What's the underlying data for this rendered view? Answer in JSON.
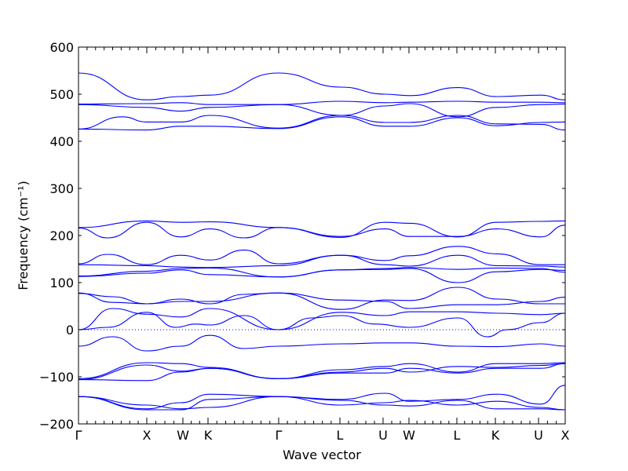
{
  "chart_data": {
    "type": "line",
    "xlabel": "Wave vector",
    "ylabel": "Frequency (cm⁻¹)",
    "ylim": [
      -200,
      600
    ],
    "yticks": [
      -200,
      -100,
      0,
      100,
      200,
      300,
      400,
      500,
      600
    ],
    "grid": false,
    "line_color": "#0000ff",
    "zero_line_color": "#0000ff",
    "xlim": [
      0,
      1
    ],
    "high_symmetry_points": [
      {
        "label": "Γ",
        "x": 0.0
      },
      {
        "label": "X",
        "x": 0.1403
      },
      {
        "label": "W",
        "x": 0.2145
      },
      {
        "label": "K",
        "x": 0.2661
      },
      {
        "label": "Γ",
        "x": 0.4113
      },
      {
        "label": "L",
        "x": 0.5371
      },
      {
        "label": "U",
        "x": 0.6258
      },
      {
        "label": "W",
        "x": 0.679
      },
      {
        "label": "L",
        "x": 0.7774
      },
      {
        "label": "K",
        "x": 0.8565
      },
      {
        "label": "U",
        "x": 0.9452
      },
      {
        "label": "X",
        "x": 1.0
      }
    ],
    "series": [
      {
        "x": [
          0,
          0.14,
          0.21,
          0.27,
          0.41,
          0.54,
          0.63,
          0.68,
          0.78,
          0.86,
          0.95,
          1
        ],
        "y": [
          545,
          488,
          495,
          498,
          545,
          515,
          500,
          497,
          514,
          495,
          498,
          488
        ]
      },
      {
        "x": [
          0,
          0.14,
          0.21,
          0.27,
          0.41,
          0.54,
          0.63,
          0.68,
          0.78,
          0.86,
          0.95,
          1
        ],
        "y": [
          479,
          480,
          482,
          478,
          478,
          485,
          482,
          483,
          485,
          483,
          483,
          482
        ]
      },
      {
        "x": [
          0,
          0.14,
          0.21,
          0.27,
          0.41,
          0.54,
          0.63,
          0.68,
          0.78,
          0.86,
          0.95,
          1
        ],
        "y": [
          478,
          472,
          464,
          472,
          478,
          455,
          475,
          480,
          452,
          472,
          478,
          479
        ]
      },
      {
        "x": [
          0,
          0.09,
          0.14,
          0.21,
          0.27,
          0.41,
          0.54,
          0.63,
          0.68,
          0.78,
          0.86,
          0.95,
          1
        ],
        "y": [
          426,
          452,
          441,
          441,
          455,
          428,
          455,
          440,
          440,
          455,
          437,
          436,
          424
        ]
      },
      {
        "x": [
          0,
          0.14,
          0.21,
          0.27,
          0.41,
          0.54,
          0.63,
          0.68,
          0.78,
          0.86,
          0.95,
          1
        ],
        "y": [
          426,
          424,
          432,
          432,
          427,
          452,
          432,
          432,
          450,
          433,
          440,
          441
        ]
      },
      {
        "x": [
          0,
          0.14,
          0.21,
          0.27,
          0.41,
          0.54,
          0.63,
          0.68,
          0.78,
          0.86,
          0.95,
          1
        ],
        "y": [
          217,
          231,
          228,
          229,
          217,
          196,
          228,
          226,
          197,
          228,
          230,
          231
        ]
      },
      {
        "x": [
          0,
          0.06,
          0.14,
          0.21,
          0.27,
          0.34,
          0.41,
          0.54,
          0.63,
          0.68,
          0.78,
          0.86,
          0.95,
          1
        ],
        "y": [
          216,
          195,
          228,
          197,
          214,
          195,
          217,
          198,
          214,
          198,
          198,
          214,
          197,
          222
        ]
      },
      {
        "x": [
          0,
          0.06,
          0.14,
          0.21,
          0.27,
          0.34,
          0.41,
          0.54,
          0.63,
          0.68,
          0.78,
          0.86,
          0.95,
          1
        ],
        "y": [
          140,
          160,
          138,
          158,
          148,
          169,
          140,
          158,
          147,
          157,
          177,
          161,
          138,
          138
        ]
      },
      {
        "x": [
          0,
          0.14,
          0.21,
          0.27,
          0.41,
          0.54,
          0.63,
          0.68,
          0.78,
          0.86,
          0.95,
          1
        ],
        "y": [
          138,
          136,
          133,
          132,
          136,
          158,
          138,
          135,
          158,
          136,
          135,
          133
        ]
      },
      {
        "x": [
          0,
          0.14,
          0.21,
          0.27,
          0.41,
          0.54,
          0.63,
          0.68,
          0.78,
          0.86,
          0.95,
          1
        ],
        "y": [
          114,
          124,
          130,
          131,
          112,
          127,
          130,
          132,
          128,
          131,
          130,
          122
        ]
      },
      {
        "x": [
          0,
          0.14,
          0.21,
          0.27,
          0.41,
          0.54,
          0.63,
          0.68,
          0.78,
          0.86,
          0.95,
          1
        ],
        "y": [
          113,
          120,
          127,
          117,
          112,
          127,
          128,
          130,
          100,
          123,
          128,
          126
        ]
      },
      {
        "x": [
          0,
          0.07,
          0.14,
          0.21,
          0.27,
          0.34,
          0.41,
          0.54,
          0.63,
          0.68,
          0.78,
          0.86,
          0.95,
          1
        ],
        "y": [
          78,
          58,
          55,
          65,
          55,
          75,
          78,
          43,
          63,
          62,
          90,
          65,
          55,
          55
        ]
      },
      {
        "x": [
          0,
          0.07,
          0.14,
          0.21,
          0.27,
          0.41,
          0.54,
          0.63,
          0.68,
          0.78,
          0.86,
          0.95,
          1
        ],
        "y": [
          77,
          70,
          55,
          60,
          60,
          78,
          63,
          60,
          45,
          53,
          53,
          60,
          69
        ]
      },
      {
        "x": [
          0,
          0.07,
          0.14,
          0.21,
          0.27,
          0.41,
          0.54,
          0.63,
          0.68,
          0.78,
          0.86,
          0.95,
          1
        ],
        "y": [
          0,
          45,
          33,
          27,
          45,
          0,
          37,
          30,
          38,
          38,
          35,
          32,
          35
        ]
      },
      {
        "x": [
          0,
          0.06,
          0.14,
          0.2,
          0.24,
          0.27,
          0.34,
          0.41,
          0.48,
          0.54,
          0.61,
          0.68,
          0.78,
          0.84,
          0.88,
          0.95,
          1
        ],
        "y": [
          0,
          5,
          37,
          5,
          12,
          10,
          30,
          0,
          25,
          30,
          12,
          5,
          25,
          -15,
          0,
          15,
          35
        ]
      },
      {
        "x": [
          0,
          0.07,
          0.14,
          0.21,
          0.27,
          0.34,
          0.41,
          0.54,
          0.63,
          0.68,
          0.78,
          0.86,
          0.95,
          1
        ],
        "y": [
          -35,
          -15,
          -45,
          -35,
          -12,
          -40,
          -35,
          -30,
          -28,
          -28,
          -35,
          -36,
          -30,
          -35
        ]
      },
      {
        "x": [
          0,
          0.14,
          0.21,
          0.27,
          0.41,
          0.54,
          0.63,
          0.68,
          0.78,
          0.86,
          0.95,
          1
        ],
        "y": [
          -104,
          -70,
          -72,
          -80,
          -104,
          -85,
          -78,
          -72,
          -90,
          -72,
          -72,
          -70
        ]
      },
      {
        "x": [
          0,
          0.14,
          0.21,
          0.27,
          0.41,
          0.54,
          0.63,
          0.68,
          0.78,
          0.86,
          0.95,
          1
        ],
        "y": [
          -106,
          -75,
          -88,
          -82,
          -104,
          -90,
          -82,
          -90,
          -78,
          -80,
          -76,
          -72
        ]
      },
      {
        "x": [
          0,
          0.14,
          0.21,
          0.27,
          0.41,
          0.54,
          0.63,
          0.68,
          0.78,
          0.86,
          0.95,
          1
        ],
        "y": [
          -106,
          -108,
          -90,
          -82,
          -104,
          -92,
          -92,
          -82,
          -92,
          -82,
          -82,
          -72
        ]
      },
      {
        "x": [
          0,
          0.14,
          0.21,
          0.27,
          0.41,
          0.54,
          0.63,
          0.68,
          0.78,
          0.86,
          0.95,
          1
        ],
        "y": [
          -142,
          -168,
          -155,
          -137,
          -142,
          -148,
          -135,
          -152,
          -148,
          -137,
          -158,
          -118
        ]
      },
      {
        "x": [
          0,
          0.14,
          0.21,
          0.27,
          0.41,
          0.54,
          0.63,
          0.68,
          0.78,
          0.86,
          0.95,
          1
        ],
        "y": [
          -142,
          -170,
          -170,
          -148,
          -142,
          -160,
          -155,
          -150,
          -160,
          -152,
          -165,
          -170
        ]
      },
      {
        "x": [
          0,
          0.14,
          0.21,
          0.27,
          0.41,
          0.54,
          0.63,
          0.68,
          0.78,
          0.86,
          0.95,
          1
        ],
        "y": [
          -142,
          -160,
          -168,
          -165,
          -142,
          -150,
          -160,
          -162,
          -150,
          -168,
          -168,
          -170
        ]
      }
    ]
  }
}
